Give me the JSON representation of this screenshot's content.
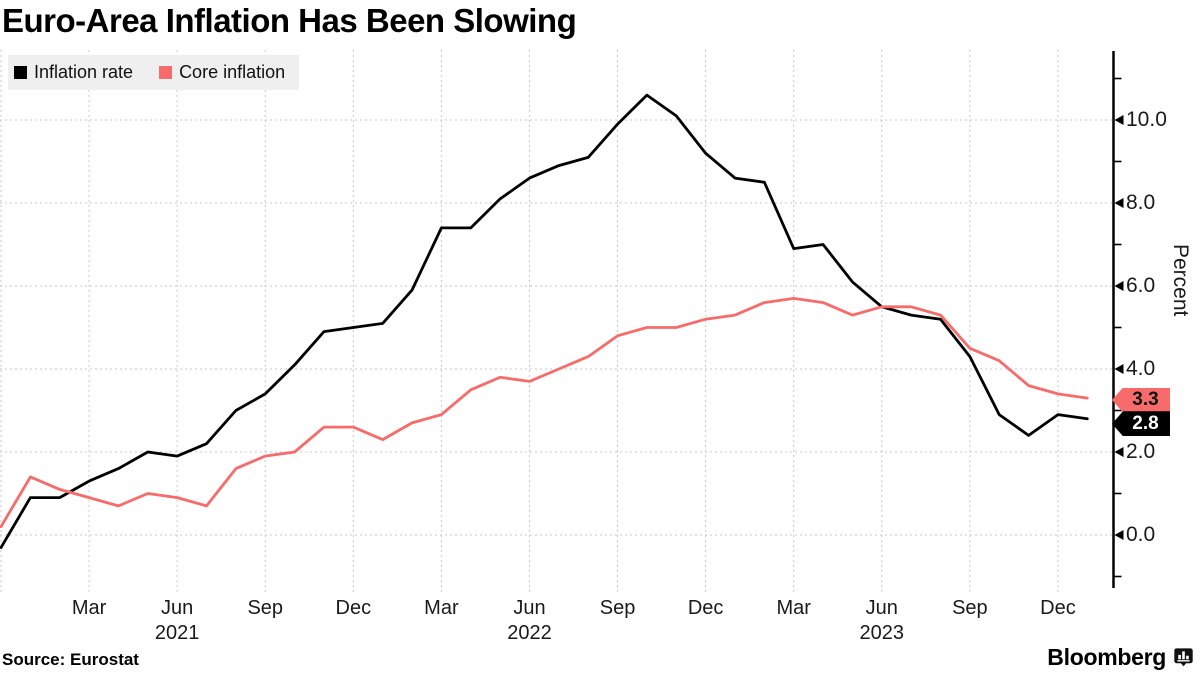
{
  "title": "Euro-Area Inflation Has Been Slowing",
  "source_label": "Source: Eurostat",
  "brand": {
    "wordmark": "Bloomberg",
    "icon": "bar-chart-badge-icon"
  },
  "colors": {
    "inflation_rate": "#000000",
    "core_inflation": "#f76b6b",
    "gridline": "#c9c9c9",
    "legend_background": "#efefef"
  },
  "chart_data": {
    "type": "line",
    "title": "Euro-Area Inflation Has Been Slowing",
    "ylabel": "Percent",
    "xlabel": "",
    "grid": true,
    "legend_position": "top-left",
    "ylim": [
      -1.3,
      11.7
    ],
    "y_tick_step": 2,
    "y_minor_tick_step": 1,
    "x_months": {
      "start": "2020-12",
      "end": "2024-01",
      "step": "1 month",
      "count": 38
    },
    "series": [
      {
        "name": "Inflation rate",
        "color": "#000000",
        "end_label": "2.8",
        "values": [
          -0.3,
          0.9,
          0.9,
          1.3,
          1.6,
          2.0,
          1.9,
          2.2,
          3.0,
          3.4,
          4.1,
          4.9,
          5.0,
          5.1,
          5.9,
          7.4,
          7.4,
          8.1,
          8.6,
          8.9,
          9.1,
          9.9,
          10.6,
          10.1,
          9.2,
          8.6,
          8.5,
          6.9,
          7.0,
          6.1,
          5.5,
          5.3,
          5.2,
          4.3,
          2.9,
          2.4,
          2.9,
          2.8
        ]
      },
      {
        "name": "Core inflation",
        "color": "#f76b6b",
        "end_label": "3.3",
        "values": [
          0.2,
          1.4,
          1.1,
          0.9,
          0.7,
          1.0,
          0.9,
          0.7,
          1.6,
          1.9,
          2.0,
          2.6,
          2.6,
          2.3,
          2.7,
          2.9,
          3.5,
          3.8,
          3.7,
          4.0,
          4.3,
          4.8,
          5.0,
          5.0,
          5.2,
          5.3,
          5.6,
          5.7,
          5.6,
          5.3,
          5.5,
          5.5,
          5.3,
          4.5,
          4.2,
          3.6,
          3.4,
          3.3
        ]
      }
    ],
    "y_ticks": [
      {
        "v": 0,
        "label": "0.0"
      },
      {
        "v": 2,
        "label": "2.0"
      },
      {
        "v": 4,
        "label": "4.0"
      },
      {
        "v": 6,
        "label": "6.0"
      },
      {
        "v": 8,
        "label": "8.0"
      },
      {
        "v": 10,
        "label": "10.0"
      }
    ],
    "x_ticks": [
      {
        "m": 3,
        "label": "Mar"
      },
      {
        "m": 6,
        "label": "Jun"
      },
      {
        "m": 9,
        "label": "Sep"
      },
      {
        "m": 12,
        "label": "Dec"
      },
      {
        "m": 15,
        "label": "Mar"
      },
      {
        "m": 18,
        "label": "Jun"
      },
      {
        "m": 21,
        "label": "Sep"
      },
      {
        "m": 24,
        "label": "Dec"
      },
      {
        "m": 27,
        "label": "Mar"
      },
      {
        "m": 30,
        "label": "Jun"
      },
      {
        "m": 33,
        "label": "Sep"
      },
      {
        "m": 36,
        "label": "Dec"
      }
    ],
    "x_year_ticks": [
      {
        "m": 6,
        "label": "2021"
      },
      {
        "m": 18,
        "label": "2022"
      },
      {
        "m": 30,
        "label": "2023"
      }
    ]
  }
}
